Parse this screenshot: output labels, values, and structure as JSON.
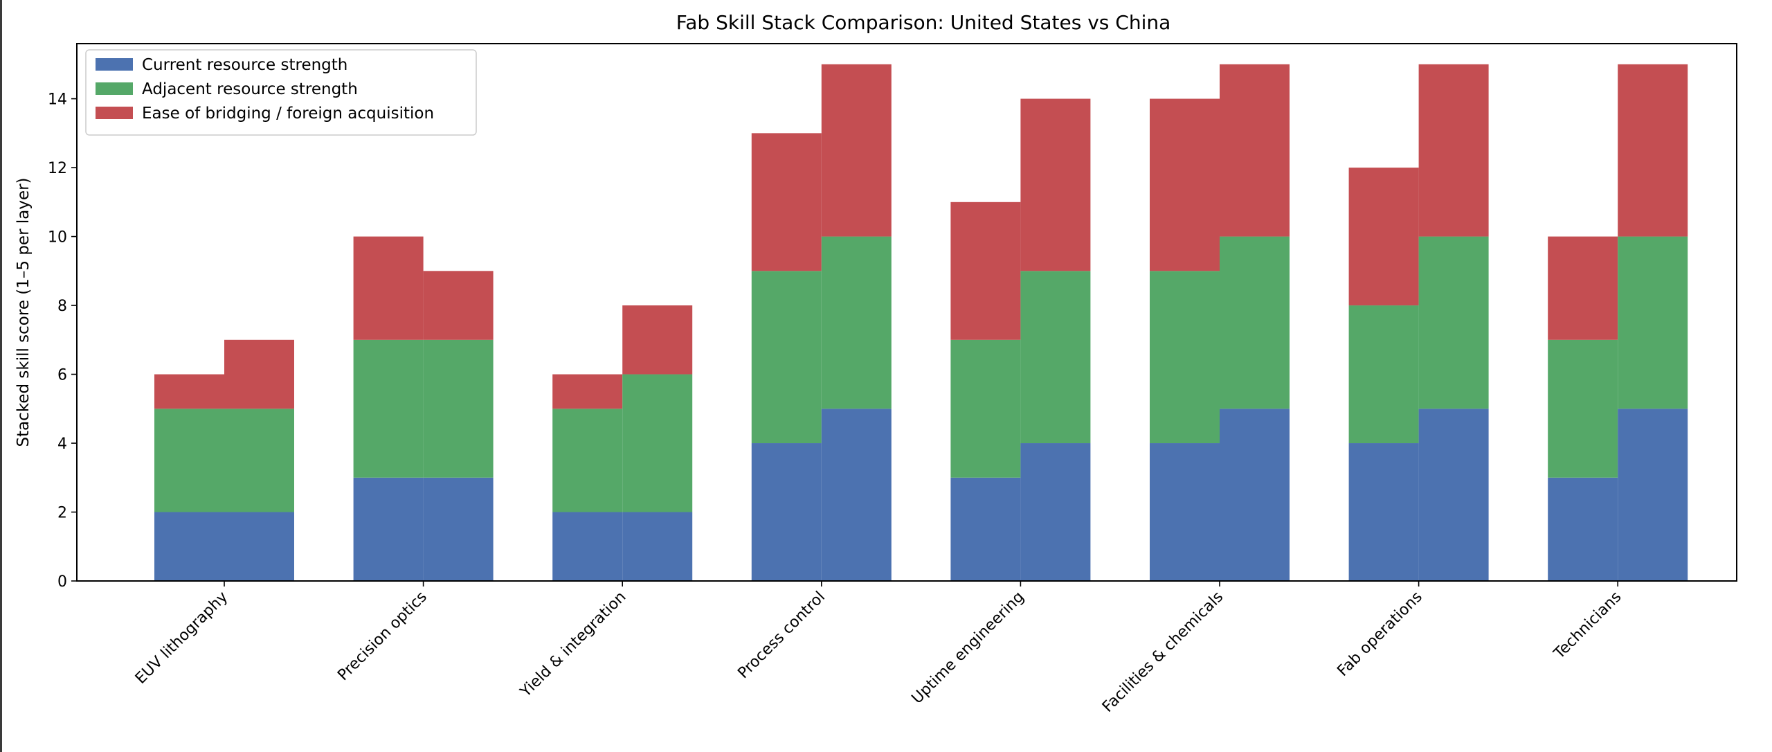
{
  "chart_data": {
    "type": "bar",
    "stacked": true,
    "grouped": true,
    "title": "Fab Skill Stack Comparison: United States vs China",
    "xlabel": "",
    "ylabel": "Stacked skill score (1–5 per layer)",
    "ylim": [
      0,
      15.6
    ],
    "yticks": [
      0,
      2,
      4,
      6,
      8,
      10,
      12,
      14
    ],
    "grid": false,
    "legend_position": "top-left",
    "categories": [
      "EUV lithography",
      "Precision optics",
      "Yield & integration",
      "Process control",
      "Uptime engineering",
      "Facilities & chemicals",
      "Fab operations",
      "Technicians"
    ],
    "groups": [
      {
        "current": [
          2,
          3,
          2,
          4,
          3,
          4,
          4,
          3
        ],
        "adjacent": [
          3,
          4,
          3,
          5,
          4,
          5,
          4,
          4
        ],
        "bridging": [
          1,
          3,
          1,
          4,
          4,
          5,
          4,
          3
        ]
      },
      {
        "current": [
          2,
          3,
          2,
          5,
          4,
          5,
          5,
          5
        ],
        "adjacent": [
          3,
          4,
          4,
          5,
          5,
          5,
          5,
          5
        ],
        "bridging": [
          2,
          2,
          2,
          5,
          5,
          5,
          5,
          5
        ]
      }
    ],
    "series": [
      {
        "key": "current",
        "name": "Current resource strength",
        "color": "#4c72b0"
      },
      {
        "key": "adjacent",
        "name": "Adjacent resource strength",
        "color": "#55a868"
      },
      {
        "key": "bridging",
        "name": "Ease of bridging / foreign acquisition",
        "color": "#c44e52"
      }
    ]
  }
}
